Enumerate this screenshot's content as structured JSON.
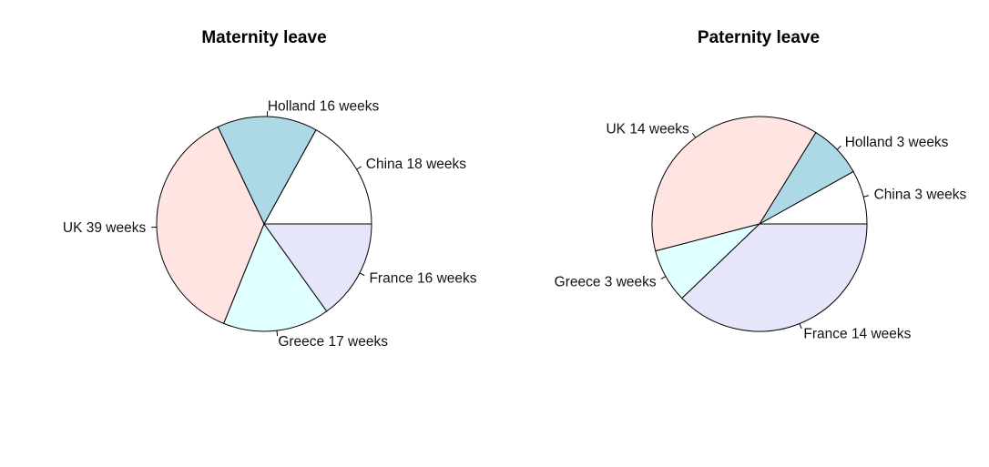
{
  "chart_data": [
    {
      "type": "pie",
      "title": "Maternity leave",
      "direction": "counterclockwise",
      "start": "3 o'clock",
      "categories": [
        "China",
        "Holland",
        "UK",
        "Greece",
        "France"
      ],
      "values": [
        18,
        16,
        39,
        17,
        16
      ],
      "labels": [
        "China 18 weeks",
        "Holland 16 weeks",
        "UK 39 weeks",
        "Greece 17 weeks",
        "France 16 weeks"
      ],
      "colors": [
        "#FFFFFF",
        "#ADD8E6",
        "#FFE4E1",
        "#E0FFFF",
        "#E6E6FA"
      ]
    },
    {
      "type": "pie",
      "title": "Paternity leave",
      "direction": "counterclockwise",
      "start": "3 o'clock",
      "categories": [
        "China",
        "Holland",
        "UK",
        "Greece",
        "France"
      ],
      "values": [
        3,
        3,
        14,
        3,
        14
      ],
      "labels": [
        "China 3 weeks",
        "Holland 3 weeks",
        "UK 14 weeks",
        "Greece 3 weeks",
        "France 14 weeks"
      ],
      "colors": [
        "#FFFFFF",
        "#ADD8E6",
        "#FFE4E1",
        "#E0FFFF",
        "#E6E6FA"
      ]
    }
  ]
}
